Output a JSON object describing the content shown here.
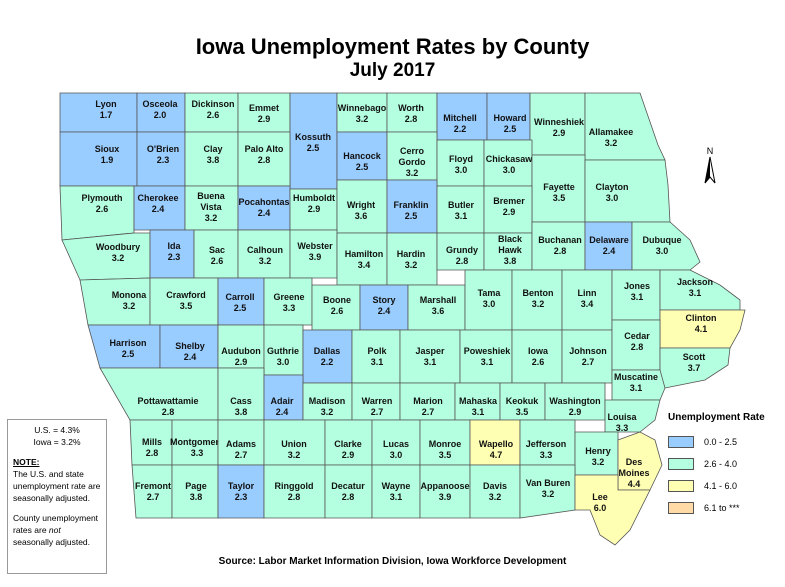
{
  "title": "Iowa Unemployment Rates by County",
  "subtitle": "July 2017",
  "source": "Source: Labor Market Information Division, Iowa Workforce Development",
  "north_label": "N",
  "note_box": {
    "us_rate": "U.S. = 4.3%",
    "iowa_rate": "Iowa = 3.2%",
    "note_heading": "NOTE:",
    "note_line1": "The U.S. and state unemployment rate are seasonally adjusted.",
    "note_line2_pre": "County unemployment rates are ",
    "note_line2_em": "not",
    "note_line2_post": " seasonally adjusted."
  },
  "legend": {
    "title": "Unemployment Rate",
    "items": [
      {
        "label": "0.0 - 2.5",
        "color": "#99ccff"
      },
      {
        "label": "2.6 - 4.0",
        "color": "#b3ffe0"
      },
      {
        "label": "4.1 - 6.0",
        "color": "#ffffb3"
      },
      {
        "label": "6.1 to ***",
        "color": "#ffd9a6"
      }
    ]
  },
  "colors": {
    "border": "#555555"
  },
  "counties": [
    {
      "name": "Lyon",
      "rate": "1.7",
      "cls": 0
    },
    {
      "name": "Osceola",
      "rate": "2.0",
      "cls": 0
    },
    {
      "name": "Dickinson",
      "rate": "2.6",
      "cls": 1
    },
    {
      "name": "Emmet",
      "rate": "2.9",
      "cls": 1
    },
    {
      "name": "Kossuth",
      "rate": "2.5",
      "cls": 0
    },
    {
      "name": "Winnebago",
      "rate": "3.2",
      "cls": 1
    },
    {
      "name": "Worth",
      "rate": "2.8",
      "cls": 1
    },
    {
      "name": "Mitchell",
      "rate": "2.2",
      "cls": 0
    },
    {
      "name": "Howard",
      "rate": "2.5",
      "cls": 0
    },
    {
      "name": "Winneshiek",
      "rate": "2.9",
      "cls": 1
    },
    {
      "name": "Allamakee",
      "rate": "3.2",
      "cls": 1
    },
    {
      "name": "Sioux",
      "rate": "1.9",
      "cls": 0
    },
    {
      "name": "O'Brien",
      "rate": "2.3",
      "cls": 0
    },
    {
      "name": "Clay",
      "rate": "3.8",
      "cls": 1
    },
    {
      "name": "Palo Alto",
      "rate": "2.8",
      "cls": 1
    },
    {
      "name": "Hancock",
      "rate": "2.5",
      "cls": 0
    },
    {
      "name": "Cerro Gordo",
      "rate": "3.2",
      "cls": 1
    },
    {
      "name": "Floyd",
      "rate": "3.0",
      "cls": 1
    },
    {
      "name": "Chickasaw",
      "rate": "3.0",
      "cls": 1
    },
    {
      "name": "Fayette",
      "rate": "3.5",
      "cls": 1
    },
    {
      "name": "Clayton",
      "rate": "3.0",
      "cls": 1
    },
    {
      "name": "Plymouth",
      "rate": "2.6",
      "cls": 1
    },
    {
      "name": "Cherokee",
      "rate": "2.4",
      "cls": 0
    },
    {
      "name": "Buena Vista",
      "rate": "3.2",
      "cls": 1
    },
    {
      "name": "Pocahontas",
      "rate": "2.4",
      "cls": 0
    },
    {
      "name": "Humboldt",
      "rate": "2.9",
      "cls": 1
    },
    {
      "name": "Wright",
      "rate": "3.6",
      "cls": 1
    },
    {
      "name": "Franklin",
      "rate": "2.5",
      "cls": 0
    },
    {
      "name": "Butler",
      "rate": "3.1",
      "cls": 1
    },
    {
      "name": "Bremer",
      "rate": "2.9",
      "cls": 1
    },
    {
      "name": "Woodbury",
      "rate": "3.2",
      "cls": 1
    },
    {
      "name": "Ida",
      "rate": "2.3",
      "cls": 0
    },
    {
      "name": "Sac",
      "rate": "2.6",
      "cls": 1
    },
    {
      "name": "Calhoun",
      "rate": "3.2",
      "cls": 1
    },
    {
      "name": "Webster",
      "rate": "3.9",
      "cls": 1
    },
    {
      "name": "Hamilton",
      "rate": "3.4",
      "cls": 1
    },
    {
      "name": "Hardin",
      "rate": "3.2",
      "cls": 1
    },
    {
      "name": "Grundy",
      "rate": "2.8",
      "cls": 1
    },
    {
      "name": "Black Hawk",
      "rate": "3.8",
      "cls": 1
    },
    {
      "name": "Buchanan",
      "rate": "2.8",
      "cls": 1
    },
    {
      "name": "Delaware",
      "rate": "2.4",
      "cls": 0
    },
    {
      "name": "Dubuque",
      "rate": "3.0",
      "cls": 1
    },
    {
      "name": "Monona",
      "rate": "3.2",
      "cls": 1
    },
    {
      "name": "Crawford",
      "rate": "3.5",
      "cls": 1
    },
    {
      "name": "Carroll",
      "rate": "2.5",
      "cls": 0
    },
    {
      "name": "Greene",
      "rate": "3.3",
      "cls": 1
    },
    {
      "name": "Boone",
      "rate": "2.6",
      "cls": 1
    },
    {
      "name": "Story",
      "rate": "2.4",
      "cls": 0
    },
    {
      "name": "Marshall",
      "rate": "3.6",
      "cls": 1
    },
    {
      "name": "Tama",
      "rate": "3.0",
      "cls": 1
    },
    {
      "name": "Benton",
      "rate": "3.2",
      "cls": 1
    },
    {
      "name": "Linn",
      "rate": "3.4",
      "cls": 1
    },
    {
      "name": "Jones",
      "rate": "3.1",
      "cls": 1
    },
    {
      "name": "Jackson",
      "rate": "3.1",
      "cls": 1
    },
    {
      "name": "Clinton",
      "rate": "4.1",
      "cls": 2
    },
    {
      "name": "Harrison",
      "rate": "2.5",
      "cls": 0
    },
    {
      "name": "Shelby",
      "rate": "2.4",
      "cls": 0
    },
    {
      "name": "Audubon",
      "rate": "2.9",
      "cls": 1
    },
    {
      "name": "Guthrie",
      "rate": "3.0",
      "cls": 1
    },
    {
      "name": "Dallas",
      "rate": "2.2",
      "cls": 0
    },
    {
      "name": "Polk",
      "rate": "3.1",
      "cls": 1
    },
    {
      "name": "Jasper",
      "rate": "3.1",
      "cls": 1
    },
    {
      "name": "Poweshiek",
      "rate": "3.1",
      "cls": 1
    },
    {
      "name": "Iowa",
      "rate": "2.6",
      "cls": 1
    },
    {
      "name": "Johnson",
      "rate": "2.7",
      "cls": 1
    },
    {
      "name": "Cedar",
      "rate": "2.8",
      "cls": 1
    },
    {
      "name": "Scott",
      "rate": "3.7",
      "cls": 1
    },
    {
      "name": "Muscatine",
      "rate": "3.1",
      "cls": 1
    },
    {
      "name": "Pottawattamie",
      "rate": "2.8",
      "cls": 1
    },
    {
      "name": "Cass",
      "rate": "3.8",
      "cls": 1
    },
    {
      "name": "Adair",
      "rate": "2.4",
      "cls": 0
    },
    {
      "name": "Madison",
      "rate": "3.2",
      "cls": 1
    },
    {
      "name": "Warren",
      "rate": "2.7",
      "cls": 1
    },
    {
      "name": "Marion",
      "rate": "2.7",
      "cls": 1
    },
    {
      "name": "Mahaska",
      "rate": "3.1",
      "cls": 1
    },
    {
      "name": "Keokuk",
      "rate": "3.5",
      "cls": 1
    },
    {
      "name": "Washington",
      "rate": "2.9",
      "cls": 1
    },
    {
      "name": "Louisa",
      "rate": "3.3",
      "cls": 1
    },
    {
      "name": "Mills",
      "rate": "2.8",
      "cls": 1
    },
    {
      "name": "Montgomery",
      "rate": "3.3",
      "cls": 1
    },
    {
      "name": "Adams",
      "rate": "2.7",
      "cls": 1
    },
    {
      "name": "Union",
      "rate": "3.2",
      "cls": 1
    },
    {
      "name": "Clarke",
      "rate": "2.9",
      "cls": 1
    },
    {
      "name": "Lucas",
      "rate": "3.0",
      "cls": 1
    },
    {
      "name": "Monroe",
      "rate": "3.5",
      "cls": 1
    },
    {
      "name": "Wapello",
      "rate": "4.7",
      "cls": 2
    },
    {
      "name": "Jefferson",
      "rate": "3.3",
      "cls": 1
    },
    {
      "name": "Henry",
      "rate": "3.2",
      "cls": 1
    },
    {
      "name": "Des Moines",
      "rate": "4.4",
      "cls": 2
    },
    {
      "name": "Fremont",
      "rate": "2.7",
      "cls": 1
    },
    {
      "name": "Page",
      "rate": "3.8",
      "cls": 1
    },
    {
      "name": "Taylor",
      "rate": "2.3",
      "cls": 0
    },
    {
      "name": "Ringgold",
      "rate": "2.8",
      "cls": 1
    },
    {
      "name": "Decatur",
      "rate": "2.8",
      "cls": 1
    },
    {
      "name": "Wayne",
      "rate": "3.1",
      "cls": 1
    },
    {
      "name": "Appanoose",
      "rate": "3.9",
      "cls": 1
    },
    {
      "name": "Davis",
      "rate": "3.2",
      "cls": 1
    },
    {
      "name": "Van Buren",
      "rate": "3.2",
      "cls": 1
    },
    {
      "name": "Lee",
      "rate": "6.0",
      "cls": 2
    }
  ]
}
